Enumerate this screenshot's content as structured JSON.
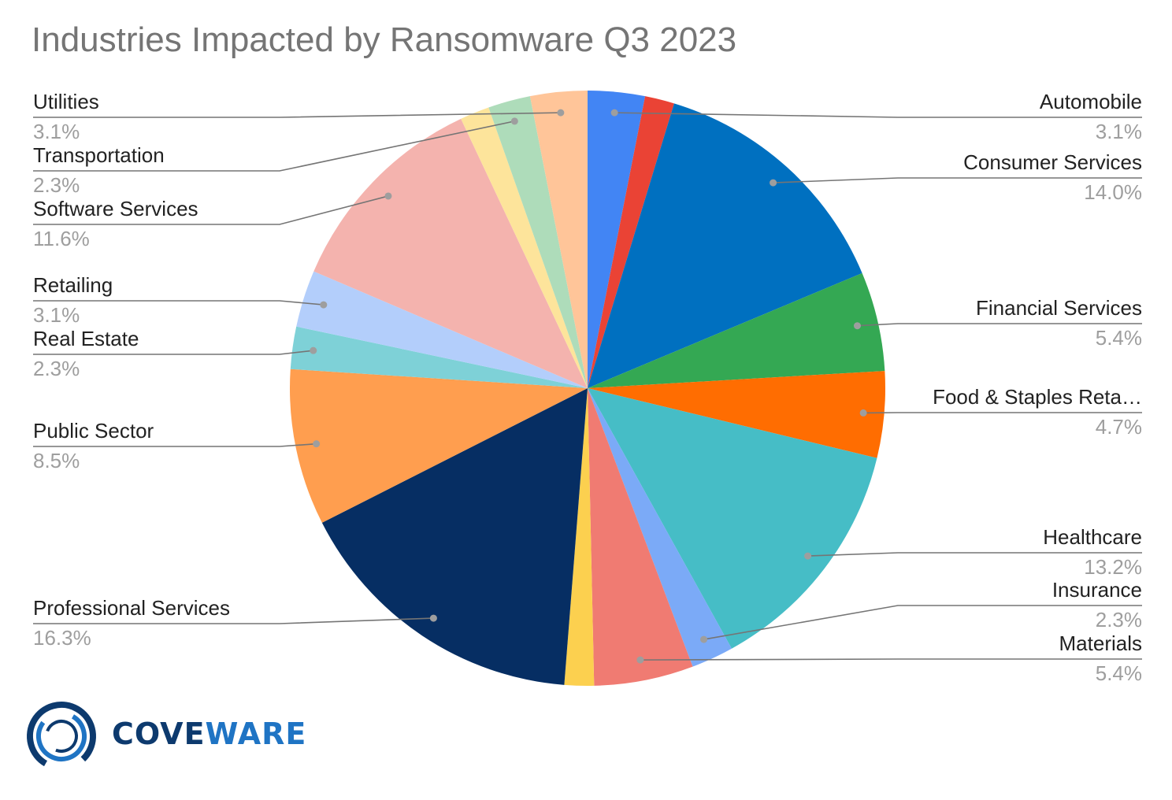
{
  "chart_data": {
    "type": "pie",
    "title": "Industries Impacted by Ransomware Q3 2023",
    "slices": [
      {
        "label": "Automobile",
        "value": 3.1,
        "color": "#4285f4"
      },
      {
        "label": "",
        "value": 1.6,
        "color": "#ea4335"
      },
      {
        "label": "Consumer Services",
        "value": 14.0,
        "color": "#0070c0"
      },
      {
        "label": "Financial Services",
        "value": 5.4,
        "color": "#34a853"
      },
      {
        "label": "Food & Staples Reta…",
        "value": 4.7,
        "color": "#ff6d01"
      },
      {
        "label": "Healthcare",
        "value": 13.2,
        "color": "#46bdc6"
      },
      {
        "label": "Insurance",
        "value": 2.3,
        "color": "#7baaf7"
      },
      {
        "label": "Materials",
        "value": 5.4,
        "color": "#f07b72"
      },
      {
        "label": "",
        "value": 1.6,
        "color": "#fcd04f"
      },
      {
        "label": "Professional Services",
        "value": 16.3,
        "color": "#062e63"
      },
      {
        "label": "Public Sector",
        "value": 8.5,
        "color": "#ff9e4f"
      },
      {
        "label": "Real Estate",
        "value": 2.3,
        "color": "#7ed1d7"
      },
      {
        "label": "Retailing",
        "value": 3.1,
        "color": "#b3cefb"
      },
      {
        "label": "Software Services",
        "value": 11.6,
        "color": "#f4b3ae"
      },
      {
        "label": "",
        "value": 1.6,
        "color": "#fde49b"
      },
      {
        "label": "Transportation",
        "value": 2.3,
        "color": "#aedcba"
      },
      {
        "label": "Utilities",
        "value": 3.1,
        "color": "#ffc599"
      }
    ],
    "legend": "callout-labels"
  },
  "logo": {
    "text_part1": "COVE",
    "text_part2": "WARE",
    "colors": {
      "dark": "#0d3a6e",
      "light": "#1f74c4"
    }
  }
}
